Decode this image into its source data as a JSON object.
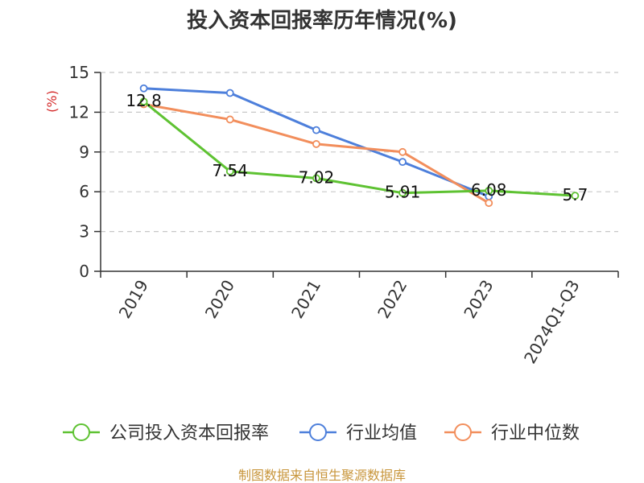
{
  "chart_data": {
    "type": "line",
    "title": "投入资本回报率历年情况(%)",
    "ylabel": "(%)",
    "xlabel": "",
    "ylim": [
      0,
      15
    ],
    "yticks": [
      0,
      3,
      6,
      9,
      12,
      15
    ],
    "grid": true,
    "legend_position": "bottom",
    "categories": [
      "2019",
      "2020",
      "2021",
      "2022",
      "2023",
      "2024Q1-Q3"
    ],
    "series": [
      {
        "name": "公司投入资本回报率",
        "color": "#5ec232",
        "values": [
          12.8,
          7.54,
          7.02,
          5.91,
          6.08,
          5.7
        ],
        "labels": [
          "12.8",
          "7.54",
          "7.02",
          "5.91",
          "6.08",
          "5.7"
        ]
      },
      {
        "name": "行业均值",
        "color": "#4d7fdb",
        "values": [
          13.8,
          13.45,
          10.65,
          8.25,
          5.65,
          null
        ]
      },
      {
        "name": "行业中位数",
        "color": "#f28e5c",
        "values": [
          12.6,
          11.45,
          9.6,
          9.0,
          5.15,
          null
        ]
      }
    ],
    "source": "制图数据来自恒生聚源数据库"
  }
}
